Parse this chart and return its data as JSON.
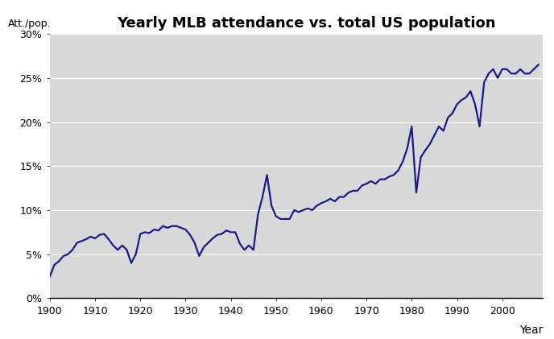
{
  "title": "Yearly MLB attendance vs. total US population",
  "ylabel": "Att./pop.",
  "xlabel": "Year",
  "bg_color": "#d8d8d8",
  "fig_color": "#ffffff",
  "line_color": "#1a1a8c",
  "line_width": 1.6,
  "xlim": [
    1900,
    2009
  ],
  "ylim": [
    0,
    0.3
  ],
  "xticks": [
    1900,
    1910,
    1920,
    1930,
    1940,
    1950,
    1960,
    1970,
    1980,
    1990,
    2000
  ],
  "yticks": [
    0,
    0.05,
    0.1,
    0.15,
    0.2,
    0.25,
    0.3
  ],
  "years": [
    1900,
    1901,
    1902,
    1903,
    1904,
    1905,
    1906,
    1907,
    1908,
    1909,
    1910,
    1911,
    1912,
    1913,
    1914,
    1915,
    1916,
    1917,
    1918,
    1919,
    1920,
    1921,
    1922,
    1923,
    1924,
    1925,
    1926,
    1927,
    1928,
    1929,
    1930,
    1931,
    1932,
    1933,
    1934,
    1935,
    1936,
    1937,
    1938,
    1939,
    1940,
    1941,
    1942,
    1943,
    1944,
    1945,
    1946,
    1947,
    1948,
    1949,
    1950,
    1951,
    1952,
    1953,
    1954,
    1955,
    1956,
    1957,
    1958,
    1959,
    1960,
    1961,
    1962,
    1963,
    1964,
    1965,
    1966,
    1967,
    1968,
    1969,
    1970,
    1971,
    1972,
    1973,
    1974,
    1975,
    1976,
    1977,
    1978,
    1979,
    1980,
    1981,
    1982,
    1983,
    1984,
    1985,
    1986,
    1987,
    1988,
    1989,
    1990,
    1991,
    1992,
    1993,
    1994,
    1995,
    1996,
    1997,
    1998,
    1999,
    2000,
    2001,
    2002,
    2003,
    2004,
    2005,
    2006,
    2007,
    2008
  ],
  "values": [
    0.025,
    0.038,
    0.042,
    0.048,
    0.05,
    0.055,
    0.063,
    0.065,
    0.067,
    0.07,
    0.068,
    0.072,
    0.073,
    0.067,
    0.06,
    0.055,
    0.06,
    0.055,
    0.04,
    0.05,
    0.073,
    0.075,
    0.074,
    0.078,
    0.077,
    0.082,
    0.08,
    0.082,
    0.082,
    0.08,
    0.078,
    0.072,
    0.063,
    0.048,
    0.058,
    0.063,
    0.068,
    0.072,
    0.073,
    0.077,
    0.075,
    0.075,
    0.062,
    0.055,
    0.06,
    0.055,
    0.095,
    0.115,
    0.14,
    0.105,
    0.093,
    0.09,
    0.09,
    0.09,
    0.1,
    0.098,
    0.1,
    0.102,
    0.1,
    0.105,
    0.108,
    0.11,
    0.113,
    0.11,
    0.115,
    0.115,
    0.12,
    0.122,
    0.122,
    0.128,
    0.13,
    0.133,
    0.13,
    0.135,
    0.135,
    0.138,
    0.14,
    0.145,
    0.155,
    0.17,
    0.195,
    0.12,
    0.16,
    0.168,
    0.175,
    0.185,
    0.195,
    0.19,
    0.205,
    0.21,
    0.22,
    0.225,
    0.228,
    0.235,
    0.22,
    0.195,
    0.245,
    0.255,
    0.26,
    0.25,
    0.26,
    0.26,
    0.255,
    0.255,
    0.26,
    0.255,
    0.255,
    0.26,
    0.265
  ]
}
